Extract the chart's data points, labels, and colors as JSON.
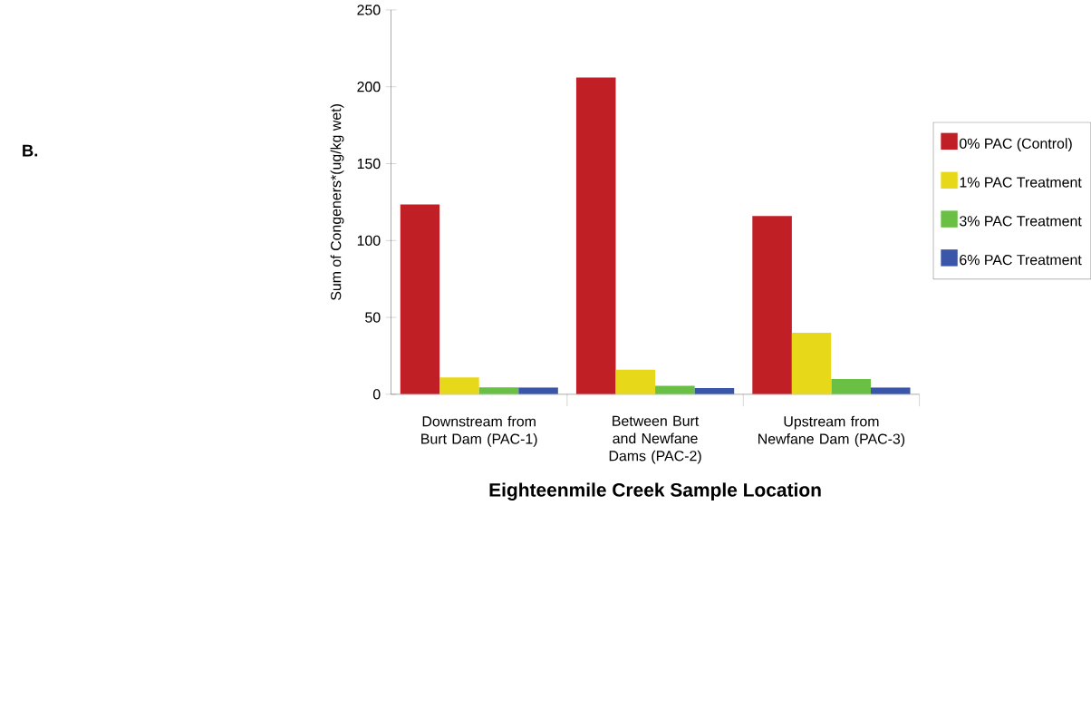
{
  "chart_data": {
    "type": "bar",
    "xlabel": "Eighteenmile Creek Sample Location",
    "ylabel": "Sum of Congeners*(ug/kg wet)",
    "annotations": [
      "B."
    ],
    "categories": [
      "Downstream from Burt Dam (PAC-1)",
      "Between Burt and Newfane Dams (PAC-2)",
      "Upstream from Newfane Dam (PAC-3)"
    ],
    "series": [
      {
        "name": "0% PAC (Control)",
        "color": "#c01f26",
        "values": [
          123.5,
          206,
          116
        ]
      },
      {
        "name": "1% PAC Treatment",
        "color": "#e8d81a",
        "values": [
          11,
          16,
          40
        ]
      },
      {
        "name": "3% PAC Treatment",
        "color": "#6abf45",
        "values": [
          4.5,
          5.5,
          10
        ]
      },
      {
        "name": "6% PAC Treatment",
        "color": "#3a56a8",
        "values": [
          4.5,
          4,
          4.5
        ]
      }
    ],
    "ylim": [
      0,
      250
    ],
    "yticks": [
      0,
      50,
      100,
      150,
      200,
      250
    ],
    "grid": false,
    "legend": "right"
  }
}
